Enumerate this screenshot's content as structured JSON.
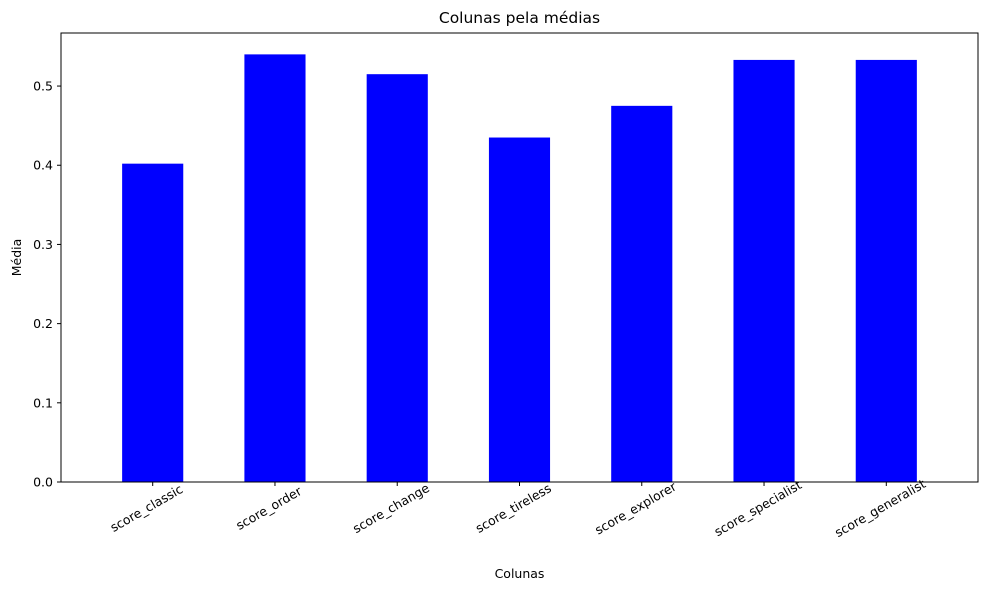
{
  "chart_data": {
    "type": "bar",
    "title": "Colunas pela médias",
    "xlabel": "Colunas",
    "ylabel": "Média",
    "categories": [
      "score_classic",
      "score_order",
      "score_change",
      "score_tireless",
      "score_explorer",
      "score_specialist",
      "score_generalist"
    ],
    "values": [
      0.402,
      0.54,
      0.515,
      0.435,
      0.475,
      0.533,
      0.533
    ],
    "ylim": [
      0,
      0.567
    ],
    "yticks": [
      "0.0",
      "0.1",
      "0.2",
      "0.3",
      "0.4",
      "0.5"
    ],
    "bar_color": "#0000ff",
    "grid": false,
    "legend": "none"
  }
}
